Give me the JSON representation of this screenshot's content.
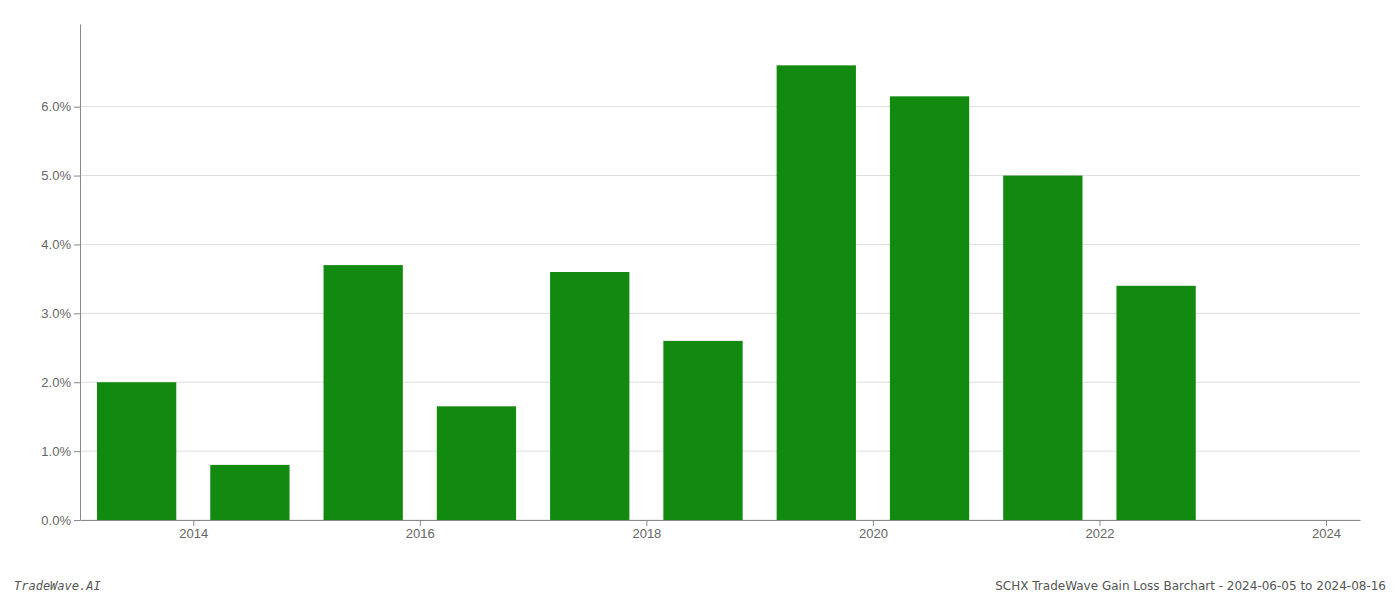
{
  "chart_data": {
    "type": "bar",
    "x": [
      2014,
      2015,
      2016,
      2017,
      2018,
      2019,
      2020,
      2021,
      2022,
      2023
    ],
    "values": [
      0.02,
      0.008,
      0.037,
      0.0165,
      0.036,
      0.026,
      0.066,
      0.0615,
      0.05,
      0.034
    ],
    "color": "#128a10",
    "xlim": [
      2013.5,
      2024.8
    ],
    "xticks": [
      {
        "value": 2014.5,
        "label": "2014"
      },
      {
        "value": 2016.5,
        "label": "2016"
      },
      {
        "value": 2018.5,
        "label": "2018"
      },
      {
        "value": 2020.5,
        "label": "2020"
      },
      {
        "value": 2022.5,
        "label": "2022"
      },
      {
        "value": 2024.5,
        "label": "2024"
      }
    ],
    "ylim": [
      0,
      0.072
    ],
    "yticks": [
      {
        "value": 0.0,
        "label": "0.0%"
      },
      {
        "value": 0.01,
        "label": "1.0%"
      },
      {
        "value": 0.02,
        "label": "2.0%"
      },
      {
        "value": 0.03,
        "label": "3.0%"
      },
      {
        "value": 0.04,
        "label": "4.0%"
      },
      {
        "value": 0.05,
        "label": "5.0%"
      },
      {
        "value": 0.06,
        "label": "6.0%"
      }
    ],
    "grid": true,
    "annotations": [
      "TradeWave.AI",
      "SCHX TradeWave Gain Loss Barchart - 2024-06-05 to 2024-08-16"
    ]
  }
}
